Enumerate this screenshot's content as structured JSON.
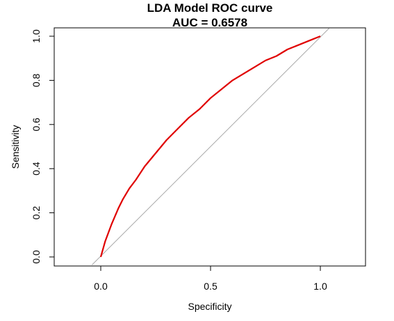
{
  "chart_data": {
    "type": "line",
    "title_line1": "LDA Model ROC curve",
    "title_line2": "AUC = 0.6578",
    "xlabel": "Specificity",
    "ylabel": "Sensitivity",
    "xlim": [
      -0.2,
      1.2
    ],
    "ylim": [
      0.0,
      1.0
    ],
    "x_ticks": [
      {
        "value": 0.0,
        "label": "0.0"
      },
      {
        "value": 0.5,
        "label": "0.5"
      },
      {
        "value": 1.0,
        "label": "1.0"
      }
    ],
    "y_ticks": [
      {
        "value": 0.0,
        "label": "0.0"
      },
      {
        "value": 0.2,
        "label": "0.2"
      },
      {
        "value": 0.4,
        "label": "0.4"
      },
      {
        "value": 0.6,
        "label": "0.6"
      },
      {
        "value": 0.8,
        "label": "0.8"
      },
      {
        "value": 1.0,
        "label": "1.0"
      }
    ],
    "grid": false,
    "series": [
      {
        "role": "roc-curve",
        "color": "#e00000",
        "points": [
          [
            0.0,
            0.0
          ],
          [
            0.02,
            0.07
          ],
          [
            0.05,
            0.15
          ],
          [
            0.08,
            0.22
          ],
          [
            0.1,
            0.26
          ],
          [
            0.13,
            0.31
          ],
          [
            0.16,
            0.35
          ],
          [
            0.2,
            0.41
          ],
          [
            0.25,
            0.47
          ],
          [
            0.3,
            0.53
          ],
          [
            0.35,
            0.58
          ],
          [
            0.4,
            0.63
          ],
          [
            0.45,
            0.67
          ],
          [
            0.5,
            0.72
          ],
          [
            0.55,
            0.76
          ],
          [
            0.6,
            0.8
          ],
          [
            0.65,
            0.83
          ],
          [
            0.7,
            0.86
          ],
          [
            0.75,
            0.89
          ],
          [
            0.8,
            0.91
          ],
          [
            0.85,
            0.94
          ],
          [
            0.9,
            0.96
          ],
          [
            0.95,
            0.98
          ],
          [
            1.0,
            1.0
          ]
        ]
      },
      {
        "role": "reference-diagonal",
        "color": "#a9a9a9",
        "points": [
          [
            -0.04,
            -0.036
          ],
          [
            1.04,
            1.036
          ]
        ]
      }
    ]
  }
}
